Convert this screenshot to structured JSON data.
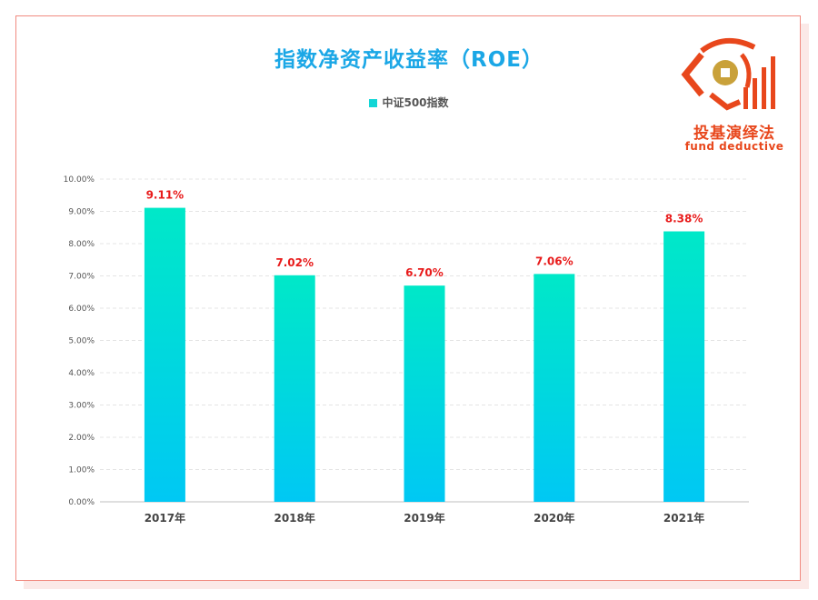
{
  "chart_data": {
    "type": "bar",
    "title": "指数净资产收益率（ROE）",
    "categories": [
      "2017年",
      "2018年",
      "2019年",
      "2020年",
      "2021年"
    ],
    "series": [
      {
        "name": "中证500指数",
        "values": [
          9.11,
          7.02,
          6.7,
          7.06,
          8.38
        ]
      }
    ],
    "data_labels": [
      "9.11%",
      "7.02%",
      "6.70%",
      "7.06%",
      "8.38%"
    ],
    "y_ticks": [
      "0.00%",
      "1.00%",
      "2.00%",
      "3.00%",
      "4.00%",
      "5.00%",
      "6.00%",
      "7.00%",
      "8.00%",
      "9.00%",
      "10.00%"
    ],
    "ylim": [
      0,
      10
    ],
    "grid": true,
    "legend_position": "top-center",
    "colors": {
      "bar_top": "#00e8c8",
      "bar_bottom": "#00c8f4",
      "data_label": "#e81b1b",
      "title": "#1ba7e6",
      "legend_swatch": "#12d6d6"
    }
  },
  "logo": {
    "name_cn": "投基演绎法",
    "name_en": "fund deductive",
    "colors": {
      "red": "#e8471c",
      "gold": "#c9a13a"
    }
  }
}
